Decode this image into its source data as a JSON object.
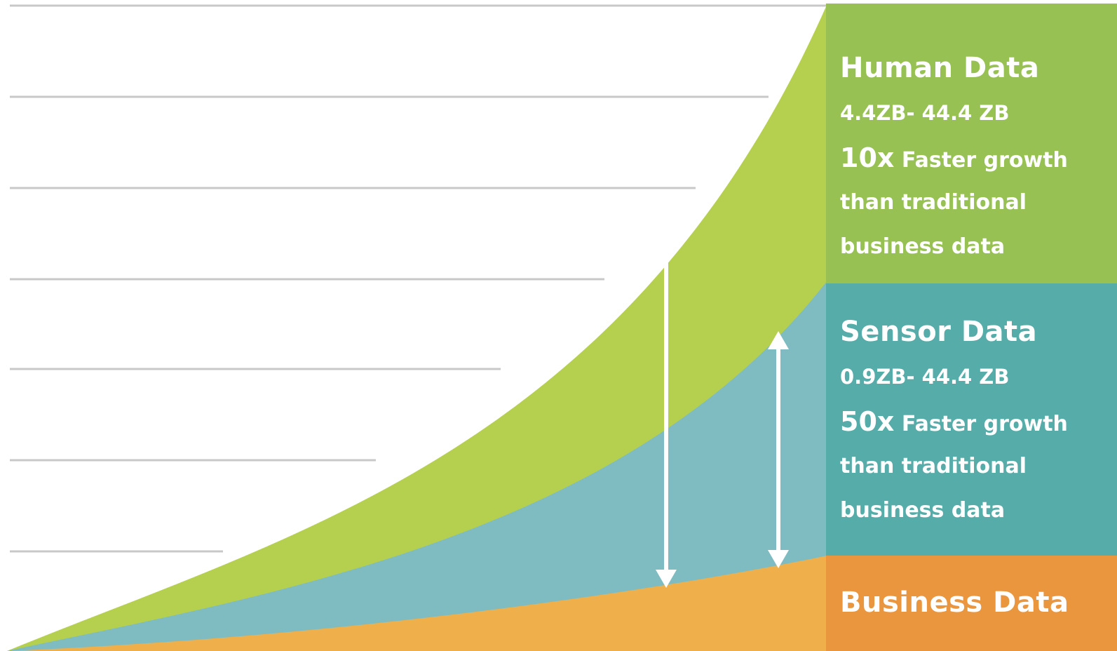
{
  "colors": {
    "human": "#b5cf4e",
    "human_panel": "#97c152",
    "sensor": "#7fbcc2",
    "sensor_panel": "#55aca9",
    "business": "#efb04c",
    "business_panel": "#ea963f",
    "gridline": "#c8c8c8",
    "arrow": "#ffffff"
  },
  "chart_data": {
    "type": "area",
    "stacked": true,
    "grid": true,
    "legend_placement": "right",
    "series": [
      {
        "name": "Business Data",
        "title": "Business Data"
      },
      {
        "name": "Sensor Data",
        "title": "Sensor Data",
        "range": "0.9ZB- 44.4 ZB",
        "multiplier": "50x",
        "growth_text": "Faster growth",
        "line2": "than traditional",
        "line3": "business data"
      },
      {
        "name": "Human Data",
        "title": "Human Data",
        "range": "4.4ZB- 44.4 ZB",
        "multiplier": "10x",
        "growth_text": "Faster growth",
        "line2": "than traditional",
        "line3": "business data"
      }
    ]
  }
}
